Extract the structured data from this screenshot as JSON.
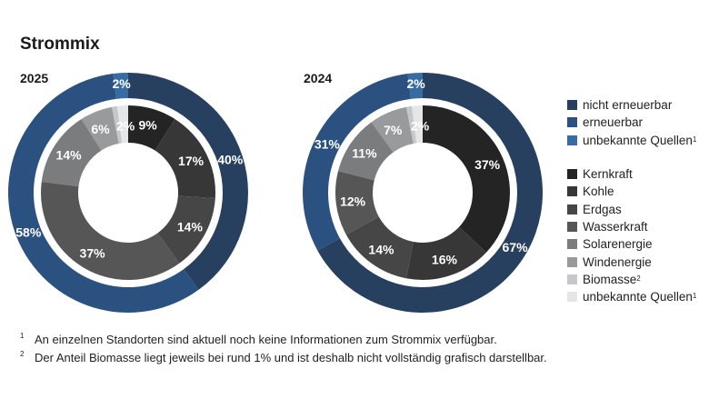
{
  "title": "Strommix",
  "chart_data": [
    {
      "type": "pie",
      "title": "2025",
      "outer_ring": {
        "segments": [
          {
            "label": "nicht erneuerbar",
            "value": 40,
            "display": "40%",
            "color": "#27405f"
          },
          {
            "label": "erneuerbar",
            "value": 58,
            "display": "58%",
            "color": "#2a5180"
          },
          {
            "label": "unbekannte Quellen",
            "value": 2,
            "display": "2%",
            "color": "#376ca3"
          }
        ]
      },
      "inner_ring": {
        "segments": [
          {
            "label": "Kernkraft",
            "value": 9,
            "display": "9%",
            "color": "#242424"
          },
          {
            "label": "Kohle",
            "value": 17,
            "display": "17%",
            "color": "#373737"
          },
          {
            "label": "Erdgas",
            "value": 14,
            "display": "14%",
            "color": "#464646"
          },
          {
            "label": "Wasserkraft",
            "value": 37,
            "display": "37%",
            "color": "#565656"
          },
          {
            "label": "Solarenergie",
            "value": 14,
            "display": "14%",
            "color": "#7a7c7e"
          },
          {
            "label": "Windenergie",
            "value": 6,
            "display": "6%",
            "color": "#989a9c"
          },
          {
            "label": "Biomasse",
            "value": 1,
            "display": "",
            "color": "#c5c8cb"
          },
          {
            "label": "unbekannte Quellen",
            "value": 2,
            "display": "2%",
            "color": "#e5e6e7"
          }
        ]
      }
    },
    {
      "type": "pie",
      "title": "2024",
      "outer_ring": {
        "segments": [
          {
            "label": "nicht erneuerbar",
            "value": 67,
            "display": "67%",
            "color": "#27405f"
          },
          {
            "label": "erneuerbar",
            "value": 31,
            "display": "31%",
            "color": "#2a5180"
          },
          {
            "label": "unbekannte Quellen",
            "value": 2,
            "display": "2%",
            "color": "#376ca3"
          }
        ]
      },
      "inner_ring": {
        "segments": [
          {
            "label": "Kernkraft",
            "value": 37,
            "display": "37%",
            "color": "#242424"
          },
          {
            "label": "Kohle",
            "value": 16,
            "display": "16%",
            "color": "#373737"
          },
          {
            "label": "Erdgas",
            "value": 14,
            "display": "14%",
            "color": "#464646"
          },
          {
            "label": "Wasserkraft",
            "value": 12,
            "display": "12%",
            "color": "#565656"
          },
          {
            "label": "Solarenergie",
            "value": 11,
            "display": "11%",
            "color": "#7a7c7e"
          },
          {
            "label": "Windenergie",
            "value": 7,
            "display": "7%",
            "color": "#989a9c"
          },
          {
            "label": "Biomasse",
            "value": 1,
            "display": "",
            "color": "#c5c8cb"
          },
          {
            "label": "unbekannte Quellen",
            "value": 2,
            "display": "2%",
            "color": "#e5e6e7"
          }
        ]
      }
    }
  ],
  "legend_outer": [
    {
      "label": "nicht erneuerbar",
      "sup": "",
      "color": "#27405f"
    },
    {
      "label": "erneuerbar",
      "sup": "",
      "color": "#2a5180"
    },
    {
      "label": "unbekannte Quellen",
      "sup": "1",
      "color": "#376ca3"
    }
  ],
  "legend_inner": [
    {
      "label": "Kernkraft",
      "sup": "",
      "color": "#242424"
    },
    {
      "label": "Kohle",
      "sup": "",
      "color": "#373737"
    },
    {
      "label": "Erdgas",
      "sup": "",
      "color": "#464646"
    },
    {
      "label": "Wasserkraft",
      "sup": "",
      "color": "#565656"
    },
    {
      "label": "Solarenergie",
      "sup": "",
      "color": "#7a7c7e"
    },
    {
      "label": "Windenergie",
      "sup": "",
      "color": "#989a9c"
    },
    {
      "label": "Biomasse",
      "sup": "2",
      "color": "#c5c8cb"
    },
    {
      "label": "unbekannte Quellen",
      "sup": "1",
      "color": "#e5e6e7"
    }
  ],
  "footnotes": [
    {
      "mark": "1",
      "text": "An einzelnen Standorten sind aktuell noch keine Informationen zum Strommix verfügbar."
    },
    {
      "mark": "2",
      "text": "Der Anteil Biomasse liegt jeweils bei rund 1% und ist deshalb nicht vollständig grafisch darstellbar."
    }
  ]
}
